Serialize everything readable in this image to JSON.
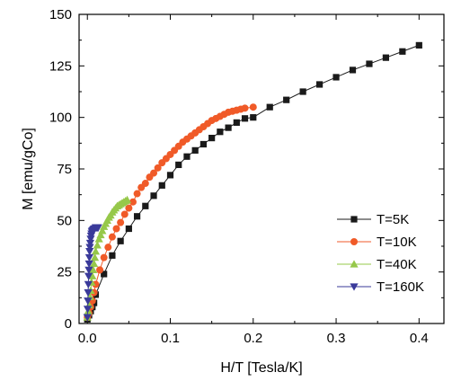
{
  "chart_data": {
    "type": "scatter",
    "title": "",
    "xlabel": "H/T [Tesla/K]",
    "ylabel": "M [emu/gCo]",
    "xlim": [
      -0.01,
      0.43
    ],
    "ylim": [
      0,
      150
    ],
    "xticks": [
      0.0,
      0.1,
      0.2,
      0.3,
      0.4
    ],
    "xtick_labels": [
      "0.0",
      "0.1",
      "0.2",
      "0.3",
      "0.4"
    ],
    "yticks": [
      0,
      25,
      50,
      75,
      100,
      125,
      150
    ],
    "ytick_labels": [
      "0",
      "25",
      "50",
      "75",
      "100",
      "125",
      "150"
    ],
    "grid": false,
    "legend_position": "lower-right",
    "series": [
      {
        "name": "T=5K",
        "color": "#1a1a1a",
        "marker": "square",
        "points": [
          [
            0.0,
            2
          ],
          [
            0.002,
            4
          ],
          [
            0.004,
            6
          ],
          [
            0.006,
            8
          ],
          [
            0.008,
            10
          ],
          [
            0.01,
            14
          ],
          [
            0.02,
            24
          ],
          [
            0.03,
            33
          ],
          [
            0.04,
            40
          ],
          [
            0.05,
            46
          ],
          [
            0.06,
            52
          ],
          [
            0.07,
            57
          ],
          [
            0.08,
            62
          ],
          [
            0.09,
            67
          ],
          [
            0.1,
            72
          ],
          [
            0.11,
            77
          ],
          [
            0.12,
            81
          ],
          [
            0.13,
            84
          ],
          [
            0.14,
            87
          ],
          [
            0.15,
            90
          ],
          [
            0.16,
            93
          ],
          [
            0.17,
            95
          ],
          [
            0.18,
            97.5
          ],
          [
            0.19,
            99.5
          ],
          [
            0.2,
            100
          ],
          [
            0.22,
            105
          ],
          [
            0.24,
            108.5
          ],
          [
            0.26,
            112.5
          ],
          [
            0.28,
            116
          ],
          [
            0.3,
            119.5
          ],
          [
            0.32,
            123
          ],
          [
            0.34,
            126
          ],
          [
            0.36,
            129
          ],
          [
            0.38,
            132
          ],
          [
            0.4,
            135
          ]
        ]
      },
      {
        "name": "T=10K",
        "color": "#f05a28",
        "marker": "circle",
        "points": [
          [
            0.0,
            3
          ],
          [
            0.002,
            5
          ],
          [
            0.004,
            8
          ],
          [
            0.006,
            11
          ],
          [
            0.008,
            15
          ],
          [
            0.01,
            19
          ],
          [
            0.015,
            26
          ],
          [
            0.02,
            32
          ],
          [
            0.025,
            37
          ],
          [
            0.03,
            42
          ],
          [
            0.035,
            46
          ],
          [
            0.04,
            49
          ],
          [
            0.045,
            53
          ],
          [
            0.05,
            56
          ],
          [
            0.055,
            59
          ],
          [
            0.06,
            63
          ],
          [
            0.065,
            66
          ],
          [
            0.07,
            68
          ],
          [
            0.075,
            71
          ],
          [
            0.08,
            73
          ],
          [
            0.085,
            75.5
          ],
          [
            0.09,
            78
          ],
          [
            0.095,
            80
          ],
          [
            0.1,
            82
          ],
          [
            0.105,
            84
          ],
          [
            0.11,
            86
          ],
          [
            0.115,
            88
          ],
          [
            0.12,
            89.5
          ],
          [
            0.125,
            91
          ],
          [
            0.13,
            92.5
          ],
          [
            0.135,
            94
          ],
          [
            0.14,
            95.5
          ],
          [
            0.145,
            97
          ],
          [
            0.15,
            98.5
          ],
          [
            0.155,
            99.5
          ],
          [
            0.16,
            100.5
          ],
          [
            0.165,
            101.5
          ],
          [
            0.17,
            102.5
          ],
          [
            0.175,
            103
          ],
          [
            0.18,
            103.5
          ],
          [
            0.185,
            104
          ],
          [
            0.19,
            104.5
          ],
          [
            0.2,
            105
          ]
        ]
      },
      {
        "name": "T=40K",
        "color": "#96c84a",
        "marker": "triangle-up",
        "points": [
          [
            0.0,
            3
          ],
          [
            0.001,
            6
          ],
          [
            0.002,
            9
          ],
          [
            0.003,
            13
          ],
          [
            0.004,
            16
          ],
          [
            0.005,
            20
          ],
          [
            0.006,
            23
          ],
          [
            0.007,
            26
          ],
          [
            0.008,
            29
          ],
          [
            0.009,
            32
          ],
          [
            0.01,
            35
          ],
          [
            0.012,
            38
          ],
          [
            0.014,
            41
          ],
          [
            0.016,
            43
          ],
          [
            0.018,
            45
          ],
          [
            0.02,
            47
          ],
          [
            0.022,
            48.5
          ],
          [
            0.024,
            50
          ],
          [
            0.026,
            51.5
          ],
          [
            0.028,
            52.5
          ],
          [
            0.03,
            54
          ],
          [
            0.032,
            55
          ],
          [
            0.034,
            56
          ],
          [
            0.036,
            57
          ],
          [
            0.038,
            57.5
          ],
          [
            0.04,
            58
          ],
          [
            0.042,
            58.5
          ],
          [
            0.044,
            59
          ],
          [
            0.046,
            59.5
          ],
          [
            0.048,
            60
          ]
        ]
      },
      {
        "name": "T=160K",
        "color": "#3a3a9a",
        "marker": "triangle-down",
        "points": [
          [
            0.0,
            3
          ],
          [
            0.0003,
            7
          ],
          [
            0.0006,
            11
          ],
          [
            0.0009,
            15
          ],
          [
            0.0012,
            19
          ],
          [
            0.0015,
            23
          ],
          [
            0.0018,
            26
          ],
          [
            0.0021,
            29
          ],
          [
            0.0024,
            32
          ],
          [
            0.0027,
            35
          ],
          [
            0.003,
            37
          ],
          [
            0.0035,
            39
          ],
          [
            0.004,
            41
          ],
          [
            0.0045,
            42.5
          ],
          [
            0.005,
            43.5
          ],
          [
            0.0055,
            44.5
          ],
          [
            0.006,
            45
          ],
          [
            0.007,
            45.5
          ],
          [
            0.008,
            46
          ],
          [
            0.009,
            46
          ],
          [
            0.01,
            46.5
          ],
          [
            0.011,
            46.5
          ],
          [
            0.012,
            46.5
          ],
          [
            0.013,
            46.5
          ]
        ]
      }
    ]
  }
}
